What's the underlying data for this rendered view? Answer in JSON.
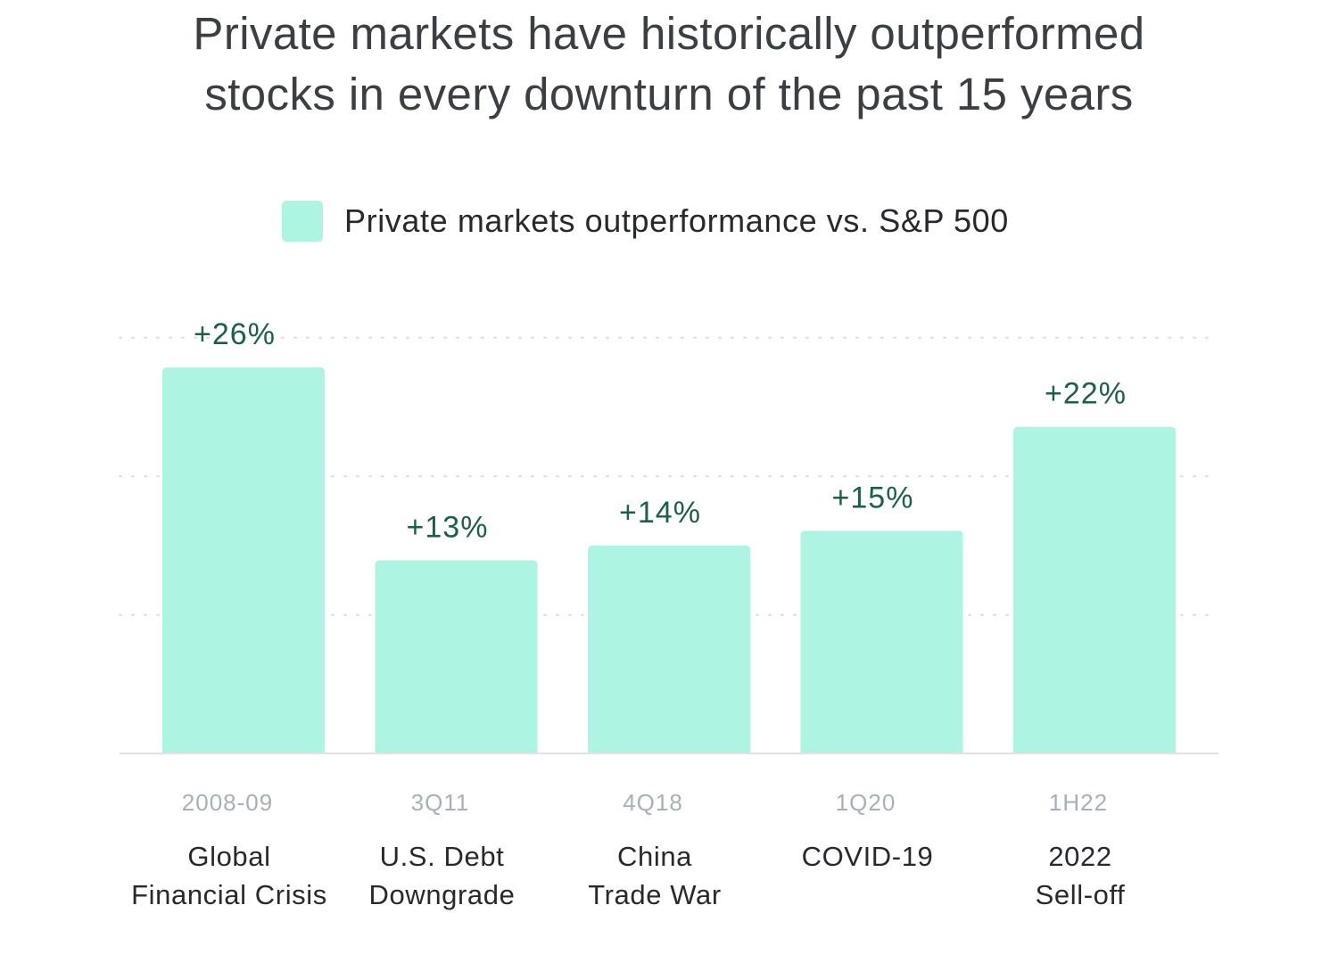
{
  "title_lines": [
    "Private markets have historically outperformed",
    "stocks in every downturn of the past 15 years"
  ],
  "colors": {
    "bar": "#adf5e2",
    "value_label": "#1d5e4c",
    "grid": "#d7dbe0",
    "axis": "#dfe3e7"
  },
  "chart_data": {
    "type": "bar",
    "title": "Private markets have historically outperformed stocks in every downturn of the past 15 years",
    "legend": "Private markets outperformance vs. S&P 500",
    "legend_position": "top-center",
    "xlabel": "",
    "ylabel": "",
    "ylim": [
      0,
      28
    ],
    "grid": true,
    "categories": [
      {
        "period": "2008-09",
        "name_lines": [
          "Global",
          "Financial Crisis"
        ]
      },
      {
        "period": "3Q11",
        "name_lines": [
          "U.S. Debt",
          "Downgrade"
        ]
      },
      {
        "period": "4Q18",
        "name_lines": [
          "China",
          "Trade War"
        ]
      },
      {
        "period": "1Q20",
        "name_lines": [
          "COVID-19"
        ]
      },
      {
        "period": "1H22",
        "name_lines": [
          "2022",
          "Sell-off"
        ]
      }
    ],
    "series": [
      {
        "name": "Private markets outperformance vs. S&P 500",
        "values": [
          26,
          13,
          14,
          15,
          22
        ],
        "labels": [
          "+26%",
          "+13%",
          "+14%",
          "+15%",
          "+22%"
        ]
      }
    ]
  }
}
